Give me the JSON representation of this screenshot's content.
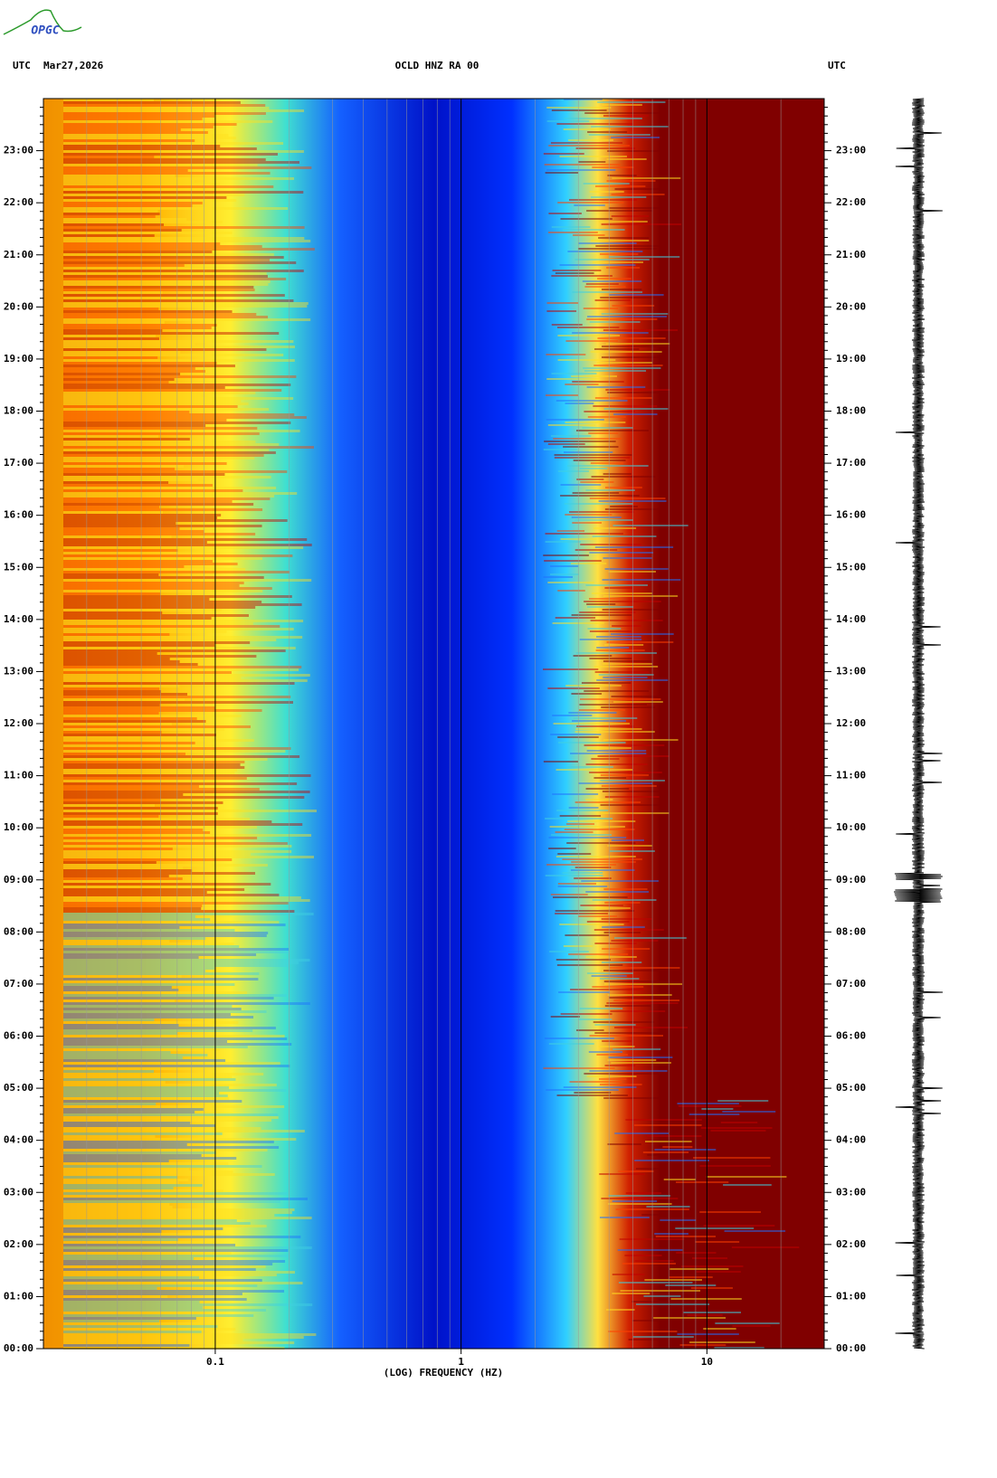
{
  "chart_data": {
    "type": "spectrogram",
    "logo": "OPGC",
    "left_label": "UTC",
    "date": "Mar27,2026",
    "title": "OCLD HNZ RA 00",
    "right_label": "UTC",
    "xlabel": "(LOG) FREQUENCY (HZ)",
    "xscale": "log",
    "xlim": [
      0.02,
      30
    ],
    "xticks": [
      {
        "value": 0.1,
        "label": "0.1"
      },
      1,
      10
    ],
    "ylim": [
      0,
      24
    ],
    "yticks": [
      {
        "value": 0,
        "label": "00:00"
      },
      {
        "value": 1,
        "label": "01:00"
      },
      {
        "value": 2,
        "label": "02:00"
      },
      {
        "value": 3,
        "label": "03:00"
      },
      {
        "value": 4,
        "label": "04:00"
      },
      {
        "value": 5,
        "label": "05:00"
      },
      {
        "value": 6,
        "label": "06:00"
      },
      {
        "value": 7,
        "label": "07:00"
      },
      {
        "value": 8,
        "label": "08:00"
      },
      {
        "value": 9,
        "label": "09:00"
      },
      {
        "value": 10,
        "label": "10:00"
      },
      {
        "value": 11,
        "label": "11:00"
      },
      {
        "value": 12,
        "label": "12:00"
      },
      {
        "value": 13,
        "label": "13:00"
      },
      {
        "value": 14,
        "label": "14:00"
      },
      {
        "value": 15,
        "label": "15:00"
      },
      {
        "value": 16,
        "label": "16:00"
      },
      {
        "value": 17,
        "label": "17:00"
      },
      {
        "value": 18,
        "label": "18:00"
      },
      {
        "value": 19,
        "label": "19:00"
      },
      {
        "value": 20,
        "label": "20:00"
      },
      {
        "value": 21,
        "label": "21:00"
      },
      {
        "value": 22,
        "label": "22:00"
      },
      {
        "value": 23,
        "label": "23:00"
      }
    ]
  }
}
